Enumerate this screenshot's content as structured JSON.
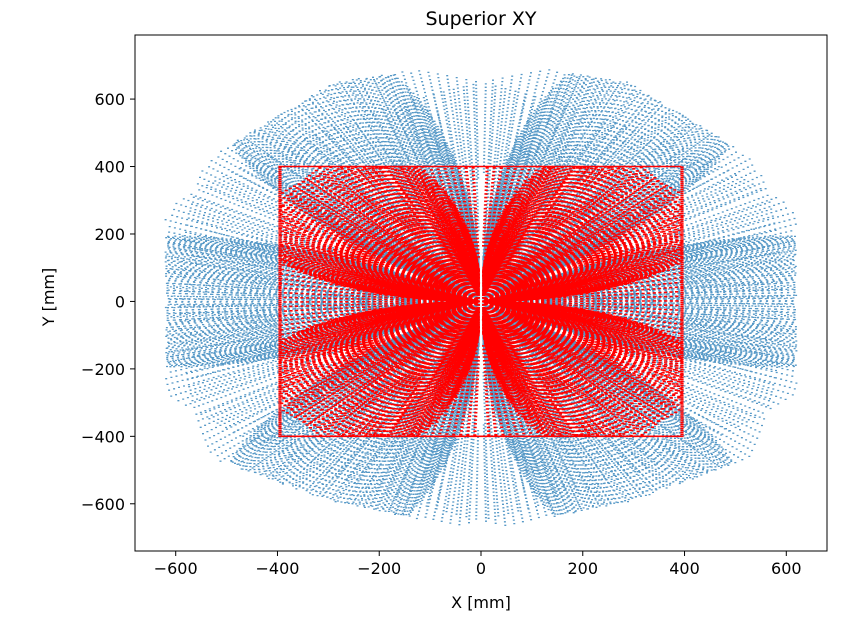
{
  "chart_data": {
    "type": "scatter",
    "title": "Superior XY",
    "xlabel": "X [mm]",
    "ylabel": "Y [mm]",
    "xlim": [
      -680,
      680
    ],
    "ylim": [
      -740,
      790
    ],
    "xticks": [
      -600,
      -400,
      -200,
      0,
      200,
      400,
      600
    ],
    "yticks": [
      -600,
      -400,
      -200,
      0,
      200,
      400,
      600
    ],
    "xtick_labels": [
      "−600",
      "−400",
      "−200",
      "0",
      "200",
      "400",
      "600"
    ],
    "ytick_labels": [
      "−600",
      "−400",
      "−200",
      "0",
      "200",
      "400",
      "600"
    ],
    "grid": false,
    "legend": "none",
    "series": [
      {
        "color": "#1f77b4",
        "marker_size": 1,
        "pattern": "dense fan of curved point arcs",
        "region_vertices": [
          [
            0,
            720
          ],
          [
            290,
            650
          ],
          [
            520,
            440
          ],
          [
            620,
            250
          ],
          [
            620,
            -350
          ],
          [
            520,
            -470
          ],
          [
            300,
            -590
          ],
          [
            80,
            -660
          ],
          [
            0,
            -670
          ],
          [
            -80,
            -660
          ],
          [
            -300,
            -590
          ],
          [
            -520,
            -470
          ],
          [
            -620,
            -350
          ],
          [
            -620,
            250
          ],
          [
            -520,
            440
          ],
          [
            -290,
            650
          ]
        ],
        "gap_rays_deg": [
          90,
          270,
          30,
          150,
          210,
          330
        ]
      },
      {
        "color": "#ff0000",
        "marker_size": 1.6,
        "pattern": "rectangular grid of curved point arcs",
        "region": {
          "x": [
            -395,
            395
          ],
          "y": [
            -400,
            400
          ]
        }
      }
    ]
  }
}
